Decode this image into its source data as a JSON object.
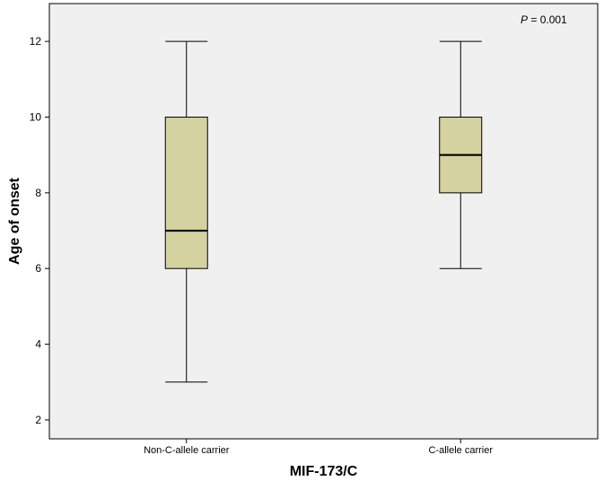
{
  "chart_data": {
    "type": "box",
    "xlabel": "MIF-173/C",
    "ylabel": "Age of onset",
    "ylim": [
      1.5,
      13
    ],
    "yticks": [
      2,
      4,
      6,
      8,
      10,
      12
    ],
    "grid": false,
    "categories": [
      "Non-C-allele carrier",
      "C-allele carrier"
    ],
    "boxes": [
      {
        "category": "Non-C-allele carrier",
        "min": 3,
        "q1": 6,
        "median": 7,
        "q3": 10,
        "max": 12
      },
      {
        "category": "C-allele carrier",
        "min": 6,
        "q1": 8,
        "median": 9,
        "q3": 10,
        "max": 12
      }
    ],
    "annotation": {
      "italic": "P",
      "rest": " = 0.001"
    },
    "colors": {
      "box_fill": "#d4d29f",
      "plot_bg": "#f0f0f0",
      "line": "#000000"
    }
  }
}
